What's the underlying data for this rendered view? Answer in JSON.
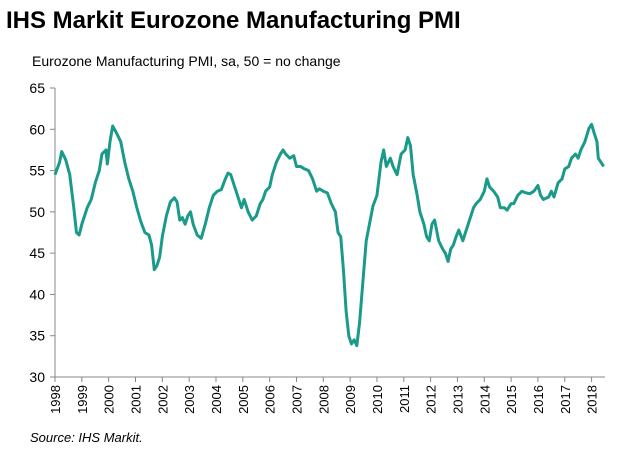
{
  "chart_data": {
    "type": "line",
    "title": "IHS Markit Eurozone Manufacturing PMI",
    "subtitle": "Eurozone Manufacturing PMI, sa, 50 = no change",
    "source": "Source: IHS Markit.",
    "color": "#1a9a8a",
    "x": [
      1998.0,
      1998.17,
      1998.25,
      1998.4,
      1998.55,
      1998.7,
      1998.8,
      1998.9,
      1999.0,
      1999.2,
      1999.35,
      1999.5,
      1999.65,
      1999.75,
      1999.9,
      1999.95,
      2000.05,
      2000.15,
      2000.3,
      2000.45,
      2000.6,
      2000.75,
      2000.9,
      2001.05,
      2001.2,
      2001.35,
      2001.5,
      2001.6,
      2001.7,
      2001.8,
      2001.9,
      2002.0,
      2002.15,
      2002.3,
      2002.45,
      2002.55,
      2002.65,
      2002.75,
      2002.85,
      2002.95,
      2003.05,
      2003.15,
      2003.3,
      2003.45,
      2003.6,
      2003.75,
      2003.9,
      2004.05,
      2004.2,
      2004.35,
      2004.45,
      2004.55,
      2004.7,
      2004.85,
      2004.95,
      2005.05,
      2005.2,
      2005.35,
      2005.5,
      2005.65,
      2005.75,
      2005.85,
      2006.0,
      2006.1,
      2006.25,
      2006.4,
      2006.5,
      2006.6,
      2006.75,
      2006.9,
      2007.0,
      2007.15,
      2007.3,
      2007.45,
      2007.6,
      2007.75,
      2007.85,
      2008.0,
      2008.15,
      2008.3,
      2008.45,
      2008.55,
      2008.65,
      2008.75,
      2008.85,
      2008.95,
      2009.05,
      2009.15,
      2009.25,
      2009.35,
      2009.5,
      2009.6,
      2009.75,
      2009.85,
      2010.0,
      2010.15,
      2010.25,
      2010.35,
      2010.5,
      2010.6,
      2010.75,
      2010.9,
      2011.05,
      2011.15,
      2011.25,
      2011.35,
      2011.5,
      2011.6,
      2011.75,
      2011.85,
      2011.95,
      2012.05,
      2012.15,
      2012.3,
      2012.45,
      2012.55,
      2012.65,
      2012.75,
      2012.85,
      2012.95,
      2013.05,
      2013.2,
      2013.35,
      2013.5,
      2013.6,
      2013.7,
      2013.85,
      2014.0,
      2014.1,
      2014.2,
      2014.35,
      2014.5,
      2014.6,
      2014.75,
      2014.85,
      2015.0,
      2015.1,
      2015.25,
      2015.4,
      2015.55,
      2015.7,
      2015.85,
      2016.0,
      2016.1,
      2016.2,
      2016.4,
      2016.5,
      2016.6,
      2016.75,
      2016.9,
      2017.0,
      2017.15,
      2017.25,
      2017.4,
      2017.5,
      2017.6,
      2017.75,
      2017.9,
      2018.0,
      2018.1,
      2018.2,
      2018.25,
      2018.35,
      2018.45
    ],
    "values": [
      54.5,
      56,
      57.3,
      56.3,
      54.5,
      50.5,
      47.5,
      47.2,
      48.5,
      50.5,
      51.5,
      53.5,
      55.0,
      57,
      57.5,
      55.8,
      58.5,
      60.4,
      59.5,
      58.5,
      56,
      54,
      52.5,
      50.5,
      48.8,
      47.5,
      47.2,
      46,
      43,
      43.5,
      44.5,
      47,
      49.5,
      51.2,
      51.7,
      51.2,
      49,
      49.3,
      48.5,
      49.5,
      50,
      48.5,
      47.2,
      46.8,
      48.5,
      50.5,
      52,
      52.5,
      52.7,
      54,
      54.7,
      54.5,
      53,
      51.5,
      50.5,
      51.5,
      50,
      49,
      49.5,
      51,
      51.5,
      52.5,
      53,
      54.5,
      56,
      57,
      57.5,
      57,
      56.5,
      56.8,
      55.5,
      55.5,
      55.2,
      55.0,
      54,
      52.5,
      52.8,
      52.5,
      52.3,
      51,
      50,
      47.5,
      47,
      43,
      38,
      35,
      34,
      34.5,
      33.8,
      36.5,
      42.5,
      46.5,
      49,
      50.7,
      52,
      56,
      57.5,
      55.5,
      56.5,
      55.5,
      54.5,
      57,
      57.5,
      59,
      58,
      54.5,
      52,
      50,
      48.5,
      47,
      46.5,
      48.5,
      49,
      46.5,
      45.5,
      45,
      44,
      45.5,
      46,
      47,
      47.8,
      46.5,
      48,
      49.5,
      50.5,
      51,
      51.5,
      52.5,
      54,
      53,
      52.5,
      51.8,
      50.5,
      50.5,
      50.2,
      51,
      51.0,
      52.0,
      52.5,
      52.3,
      52.2,
      52.5,
      53.2,
      52.0,
      51.5,
      51.8,
      52.5,
      51.8,
      53.5,
      54.0,
      55.2,
      55.5,
      56.5,
      57,
      56.5,
      57.5,
      58.5,
      60.1,
      60.6,
      59.5,
      58.5,
      56.5,
      56.0,
      55.5
    ],
    "xlim": [
      1998,
      2018.5
    ],
    "xticks": [
      1998,
      1999,
      2000,
      2001,
      2002,
      2003,
      2004,
      2005,
      2006,
      2007,
      2008,
      2009,
      2010,
      2011,
      2012,
      2013,
      2014,
      2015,
      2016,
      2017,
      2018
    ],
    "ylim": [
      30,
      65
    ],
    "yticks": [
      30,
      35,
      40,
      45,
      50,
      55,
      60,
      65
    ],
    "grid": false
  }
}
